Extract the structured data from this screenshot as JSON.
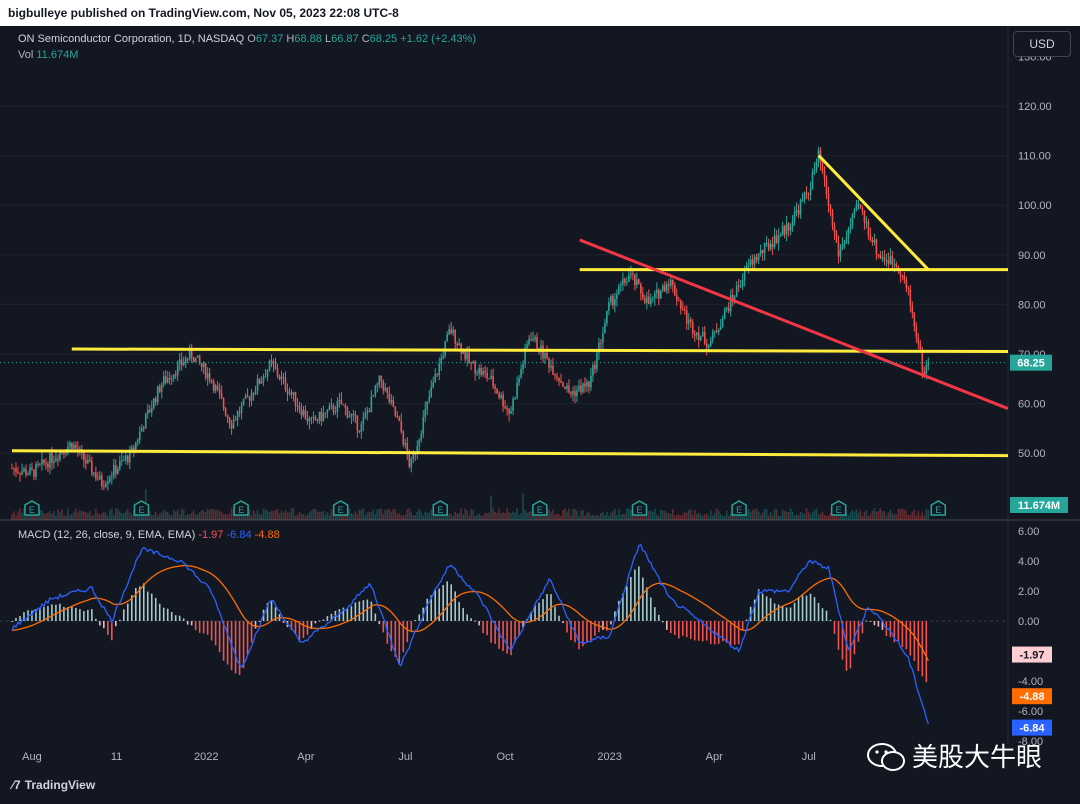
{
  "publisher": "bigbulleye published on TradingView.com, Nov 05, 2023 22:08 UTC-8",
  "legend": {
    "symbol": "ON Semiconductor Corporation, 1D, NASDAQ",
    "o_label": "O",
    "o": "67.37",
    "h_label": "H",
    "h": "68.88",
    "l_label": "L",
    "l": "66.87",
    "c_label": "C",
    "c": "68.25",
    "change": "+1.62 (+2.43%)",
    "vol_label": "Vol",
    "vol": "11.674M"
  },
  "currency_button": "USD",
  "macd_legend": {
    "label": "MACD (12, 26, close, 9, EMA, EMA)",
    "hist": "-1.97",
    "macd": "-6.84",
    "signal": "-4.88"
  },
  "price_axis": [
    "130.00",
    "120.00",
    "110.00",
    "100.00",
    "90.00",
    "80.00",
    "70.00",
    "60.00",
    "50.00"
  ],
  "price_tag": "68.25",
  "volume_tag": "11.674M",
  "macd_axis": [
    "6.00",
    "4.00",
    "2.00",
    "0.00",
    "-2.00",
    "-4.00",
    "-6.00",
    "-8.00"
  ],
  "macd_tags": {
    "hist": "-1.97",
    "signal": "-4.88",
    "macd": "-6.84"
  },
  "time_axis": [
    "Aug",
    "11",
    "2022",
    "Apr",
    "Jul",
    "Oct",
    "2023",
    "Apr",
    "Jul"
  ],
  "earnings_marker": "E",
  "brand": "TradingView",
  "watermark": "美股大牛眼",
  "colors": {
    "bg": "#131722",
    "up": "#26a69a",
    "down": "#ef5350",
    "yellow": "#ffeb3b",
    "red": "#f23645",
    "macd": "#2962ff",
    "signal": "#ff6d00"
  },
  "chart_data": {
    "type": "candlestick",
    "y_range": [
      40,
      130
    ],
    "macd_range": [
      -8,
      6
    ],
    "last_close": 68.25,
    "anchors": [
      {
        "t": 0,
        "p": 47
      },
      {
        "t": 2,
        "p": 46
      },
      {
        "t": 6,
        "p": 52
      },
      {
        "t": 9,
        "p": 44
      },
      {
        "t": 12,
        "p": 50
      },
      {
        "t": 13,
        "p": 55
      },
      {
        "t": 15,
        "p": 64
      },
      {
        "t": 18,
        "p": 70
      },
      {
        "t": 20,
        "p": 65
      },
      {
        "t": 22,
        "p": 56
      },
      {
        "t": 24,
        "p": 62
      },
      {
        "t": 26,
        "p": 68
      },
      {
        "t": 28,
        "p": 62
      },
      {
        "t": 30,
        "p": 56
      },
      {
        "t": 33,
        "p": 60
      },
      {
        "t": 35,
        "p": 55
      },
      {
        "t": 37,
        "p": 65
      },
      {
        "t": 39,
        "p": 55
      },
      {
        "t": 40,
        "p": 47
      },
      {
        "t": 42,
        "p": 62
      },
      {
        "t": 44,
        "p": 75
      },
      {
        "t": 46,
        "p": 68
      },
      {
        "t": 48,
        "p": 65
      },
      {
        "t": 50,
        "p": 58
      },
      {
        "t": 52,
        "p": 74
      },
      {
        "t": 54,
        "p": 68
      },
      {
        "t": 56,
        "p": 62
      },
      {
        "t": 58,
        "p": 64
      },
      {
        "t": 60,
        "p": 80
      },
      {
        "t": 62,
        "p": 86
      },
      {
        "t": 64,
        "p": 80
      },
      {
        "t": 66,
        "p": 85
      },
      {
        "t": 68,
        "p": 76
      },
      {
        "t": 70,
        "p": 72
      },
      {
        "t": 72,
        "p": 80
      },
      {
        "t": 74,
        "p": 88
      },
      {
        "t": 76,
        "p": 92
      },
      {
        "t": 78,
        "p": 96
      },
      {
        "t": 80,
        "p": 103
      },
      {
        "t": 81,
        "p": 110
      },
      {
        "t": 83,
        "p": 90
      },
      {
        "t": 85,
        "p": 100
      },
      {
        "t": 87,
        "p": 90
      },
      {
        "t": 89,
        "p": 88
      },
      {
        "t": 90,
        "p": 82
      },
      {
        "t": 91,
        "p": 72
      },
      {
        "t": 91.5,
        "p": 66
      },
      {
        "t": 92,
        "p": 68.25
      }
    ],
    "macd_anchors": [
      {
        "t": 0,
        "m": -0.5
      },
      {
        "t": 4,
        "m": 1.5
      },
      {
        "t": 8,
        "m": 2.2
      },
      {
        "t": 10,
        "m": 0
      },
      {
        "t": 13,
        "m": 4.8
      },
      {
        "t": 17,
        "m": 4.0
      },
      {
        "t": 20,
        "m": 2.0
      },
      {
        "t": 23,
        "m": -3.2
      },
      {
        "t": 26,
        "m": 1.5
      },
      {
        "t": 29,
        "m": -1.5
      },
      {
        "t": 33,
        "m": 0.5
      },
      {
        "t": 36,
        "m": 2.5
      },
      {
        "t": 39,
        "m": -3.0
      },
      {
        "t": 42,
        "m": 1.5
      },
      {
        "t": 44,
        "m": 3.8
      },
      {
        "t": 47,
        "m": 1.5
      },
      {
        "t": 50,
        "m": -2.0
      },
      {
        "t": 54,
        "m": 2.8
      },
      {
        "t": 57,
        "m": -1.5
      },
      {
        "t": 60,
        "m": -1.0
      },
      {
        "t": 63,
        "m": 5.2
      },
      {
        "t": 66,
        "m": 1.5
      },
      {
        "t": 70,
        "m": -0.5
      },
      {
        "t": 73,
        "m": -2.0
      },
      {
        "t": 75,
        "m": 2.0
      },
      {
        "t": 78,
        "m": 2.0
      },
      {
        "t": 80,
        "m": 4.0
      },
      {
        "t": 82,
        "m": 3.5
      },
      {
        "t": 84,
        "m": -2.0
      },
      {
        "t": 86,
        "m": 1.0
      },
      {
        "t": 88,
        "m": -0.5
      },
      {
        "t": 90,
        "m": -2.5
      },
      {
        "t": 92,
        "m": -6.84
      }
    ],
    "trendlines": [
      {
        "color": "yellow",
        "from": {
          "t": 0,
          "p": 50.5
        },
        "to": {
          "t": 100,
          "p": 49.5
        }
      },
      {
        "color": "yellow",
        "from": {
          "t": 6,
          "p": 71
        },
        "to": {
          "t": 100,
          "p": 70.5
        }
      },
      {
        "color": "yellow",
        "from": {
          "t": 57,
          "p": 87
        },
        "to": {
          "t": 100,
          "p": 87
        }
      },
      {
        "color": "yellow",
        "from": {
          "t": 81,
          "p": 110
        },
        "to": {
          "t": 92,
          "p": 87
        }
      },
      {
        "color": "red",
        "from": {
          "t": 57,
          "p": 93
        },
        "to": {
          "t": 100,
          "p": 59
        }
      }
    ],
    "earnings_t": [
      2,
      13,
      23,
      33,
      43,
      53,
      63,
      73,
      83,
      93
    ]
  }
}
